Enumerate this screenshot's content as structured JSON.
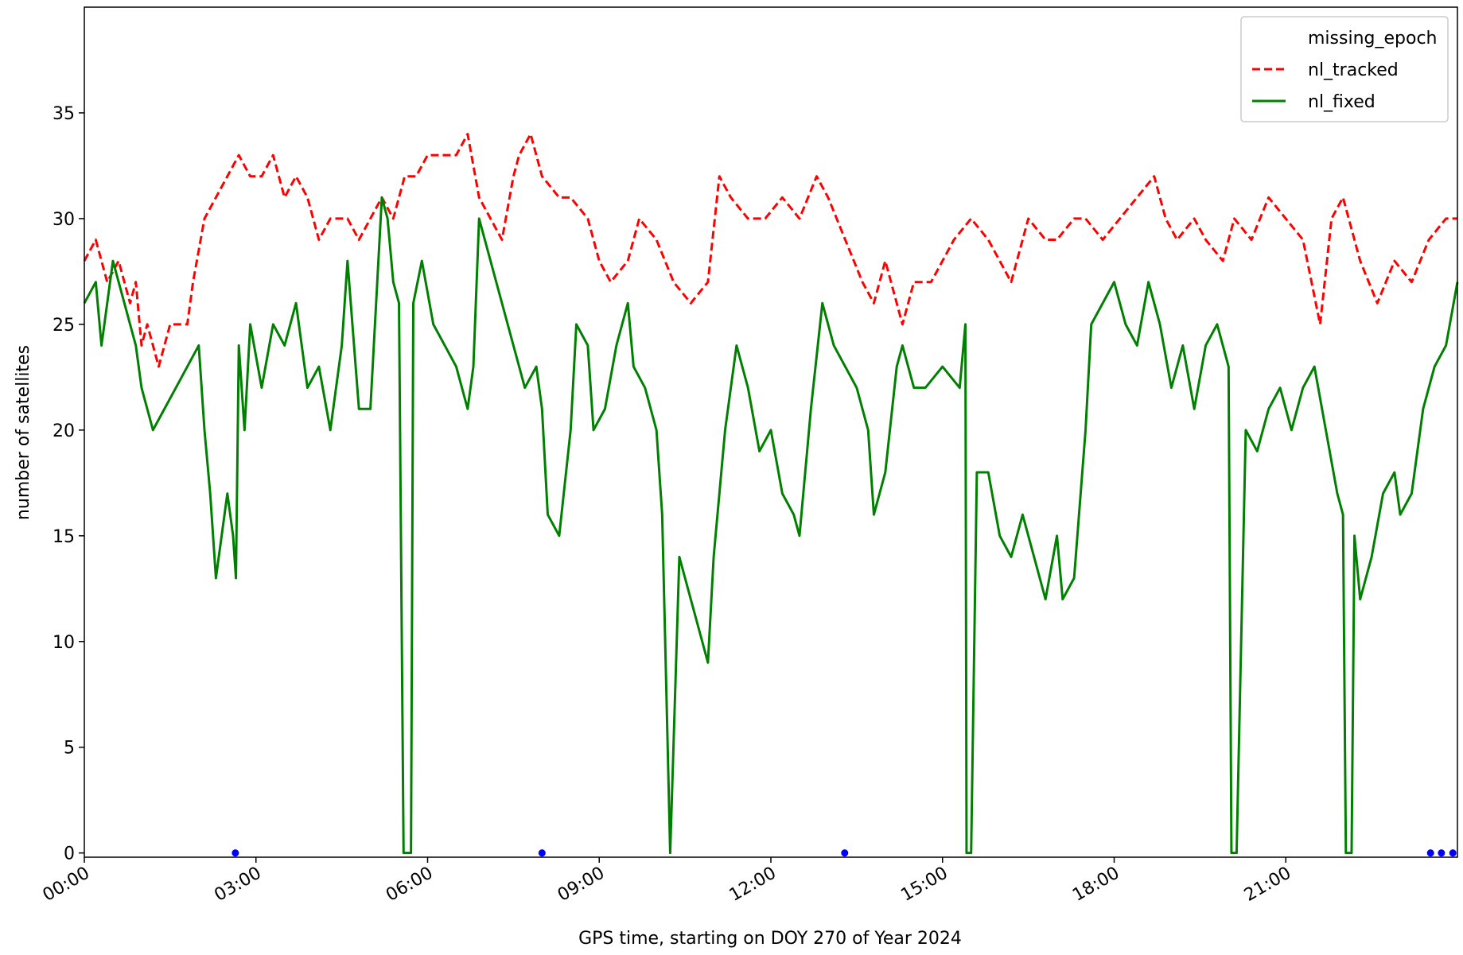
{
  "chart_data": {
    "type": "line",
    "xlabel": "GPS time, starting on DOY 270 of Year 2024",
    "ylabel": "number of satellites",
    "xlim": [
      0,
      24
    ],
    "ylim": [
      -0.2,
      40
    ],
    "xticks": [
      {
        "value": 0,
        "label": "00:00"
      },
      {
        "value": 3,
        "label": "03:00"
      },
      {
        "value": 6,
        "label": "06:00"
      },
      {
        "value": 9,
        "label": "09:00"
      },
      {
        "value": 12,
        "label": "12:00"
      },
      {
        "value": 15,
        "label": "15:00"
      },
      {
        "value": 18,
        "label": "18:00"
      },
      {
        "value": 21,
        "label": "21:00"
      }
    ],
    "yticks": [
      0,
      5,
      10,
      15,
      20,
      25,
      30,
      35
    ],
    "legend": "upper right",
    "series": [
      {
        "name": "missing_epoch",
        "color": "#0000ff",
        "linestyle": "none",
        "marker": "o",
        "x": [
          2.64,
          8.0,
          13.29,
          23.53,
          23.72,
          23.92
        ],
        "values": [
          0,
          0,
          0,
          0,
          0,
          0
        ]
      },
      {
        "name": "nl_tracked",
        "color": "#ff0000",
        "linestyle": "dashed",
        "marker": "none",
        "x": [
          0,
          0.2,
          0.4,
          0.6,
          0.8,
          0.9,
          1.0,
          1.1,
          1.3,
          1.5,
          1.8,
          1.9,
          2.1,
          2.3,
          2.5,
          2.7,
          2.9,
          3.1,
          3.3,
          3.5,
          3.7,
          3.9,
          4.1,
          4.3,
          4.6,
          4.8,
          5.0,
          5.2,
          5.4,
          5.6,
          5.8,
          6.0,
          6.3,
          6.5,
          6.7,
          6.9,
          7.1,
          7.3,
          7.5,
          7.6,
          7.8,
          8.0,
          8.3,
          8.5,
          8.8,
          9.0,
          9.2,
          9.5,
          9.7,
          10.0,
          10.3,
          10.6,
          10.9,
          11.1,
          11.3,
          11.6,
          11.9,
          12.2,
          12.5,
          12.8,
          13.0,
          13.3,
          13.6,
          13.8,
          14.0,
          14.3,
          14.5,
          14.8,
          15.0,
          15.2,
          15.5,
          15.8,
          16.0,
          16.2,
          16.5,
          16.8,
          17.0,
          17.3,
          17.5,
          17.8,
          18.1,
          18.4,
          18.7,
          18.9,
          19.1,
          19.4,
          19.6,
          19.9,
          20.1,
          20.4,
          20.7,
          21.0,
          21.3,
          21.6,
          21.8,
          22.0,
          22.3,
          22.6,
          22.9,
          23.2,
          23.5,
          23.8,
          24.0
        ],
        "values": [
          28,
          29,
          27,
          28,
          26,
          27,
          24,
          25,
          23,
          25,
          25,
          27,
          30,
          31,
          32,
          33,
          32,
          32,
          33,
          31,
          32,
          31,
          29,
          30,
          30,
          29,
          30,
          31,
          30,
          32,
          32,
          33,
          33,
          33,
          34,
          31,
          30,
          29,
          32,
          33,
          34,
          32,
          31,
          31,
          30,
          28,
          27,
          28,
          30,
          29,
          27,
          26,
          27,
          32,
          31,
          30,
          30,
          31,
          30,
          32,
          31,
          29,
          27,
          26,
          28,
          25,
          27,
          27,
          28,
          29,
          30,
          29,
          28,
          27,
          30,
          29,
          29,
          30,
          30,
          29,
          30,
          31,
          32,
          30,
          29,
          30,
          29,
          28,
          30,
          29,
          31,
          30,
          29,
          25,
          30,
          31,
          28,
          26,
          28,
          27,
          29,
          30,
          30
        ]
      },
      {
        "name": "nl_fixed",
        "color": "#008000",
        "linestyle": "solid",
        "marker": "none",
        "x": [
          0,
          0.2,
          0.3,
          0.5,
          0.7,
          0.9,
          1.0,
          1.2,
          1.4,
          1.6,
          1.8,
          2.0,
          2.1,
          2.2,
          2.3,
          2.5,
          2.6,
          2.65,
          2.7,
          2.8,
          2.9,
          3.1,
          3.3,
          3.5,
          3.7,
          3.9,
          4.1,
          4.3,
          4.5,
          4.6,
          4.8,
          5.0,
          5.2,
          5.3,
          5.4,
          5.5,
          5.58,
          5.71,
          5.75,
          5.9,
          6.1,
          6.3,
          6.5,
          6.7,
          6.8,
          6.9,
          7.0,
          7.1,
          7.3,
          7.5,
          7.7,
          7.9,
          8.0,
          8.1,
          8.3,
          8.5,
          8.6,
          8.8,
          8.9,
          9.1,
          9.3,
          9.5,
          9.6,
          9.8,
          10.0,
          10.1,
          10.24,
          10.4,
          10.6,
          10.8,
          10.9,
          11.0,
          11.2,
          11.4,
          11.6,
          11.8,
          12.0,
          12.2,
          12.4,
          12.5,
          12.7,
          12.9,
          13.1,
          13.3,
          13.5,
          13.7,
          13.8,
          14.0,
          14.2,
          14.3,
          14.5,
          14.7,
          15.0,
          15.3,
          15.4,
          15.42,
          15.5,
          15.6,
          15.8,
          16.0,
          16.2,
          16.4,
          16.6,
          16.8,
          17.0,
          17.1,
          17.3,
          17.5,
          17.6,
          17.8,
          18.0,
          18.2,
          18.4,
          18.6,
          18.8,
          19.0,
          19.2,
          19.4,
          19.6,
          19.8,
          20.0,
          20.05,
          20.14,
          20.3,
          20.5,
          20.7,
          20.9,
          21.1,
          21.3,
          21.5,
          21.7,
          21.9,
          22.0,
          22.05,
          22.15,
          22.2,
          22.3,
          22.5,
          22.7,
          22.9,
          23.0,
          23.2,
          23.4,
          23.6,
          23.8,
          24.0
        ],
        "values": [
          26,
          27,
          24,
          28,
          26,
          24,
          22,
          20,
          21,
          22,
          23,
          24,
          20,
          17,
          13,
          17,
          15,
          13,
          24,
          20,
          25,
          22,
          25,
          24,
          26,
          22,
          23,
          20,
          24,
          28,
          21,
          21,
          31,
          30,
          27,
          26,
          0,
          0,
          26,
          28,
          25,
          24,
          23,
          21,
          23,
          30,
          29,
          28,
          26,
          24,
          22,
          23,
          21,
          16,
          15,
          20,
          25,
          24,
          20,
          21,
          24,
          26,
          23,
          22,
          20,
          16,
          0,
          14,
          12,
          10,
          9,
          14,
          20,
          24,
          22,
          19,
          20,
          17,
          16,
          15,
          21,
          26,
          24,
          23,
          22,
          20,
          16,
          18,
          23,
          24,
          22,
          22,
          23,
          22,
          25,
          0,
          0,
          18,
          18,
          15,
          14,
          16,
          14,
          12,
          15,
          12,
          13,
          20,
          25,
          26,
          27,
          25,
          24,
          27,
          25,
          22,
          24,
          21,
          24,
          25,
          23,
          0,
          0,
          20,
          19,
          21,
          22,
          20,
          22,
          23,
          20,
          17,
          16,
          0,
          0,
          15,
          12,
          14,
          17,
          18,
          16,
          17,
          21,
          23,
          24,
          27
        ]
      }
    ]
  }
}
